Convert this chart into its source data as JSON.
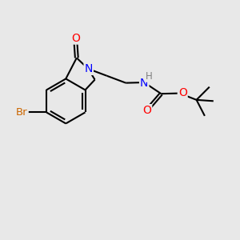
{
  "background_color": "#e8e8e8",
  "bond_color": "#000000",
  "atom_colors": {
    "O": "#ff0000",
    "N": "#0000ff",
    "Br": "#cc6600",
    "H": "#808080",
    "C": "#000000"
  },
  "figsize": [
    3.0,
    3.0
  ],
  "dpi": 100,
  "lw": 1.5,
  "fontsize": 9.5
}
